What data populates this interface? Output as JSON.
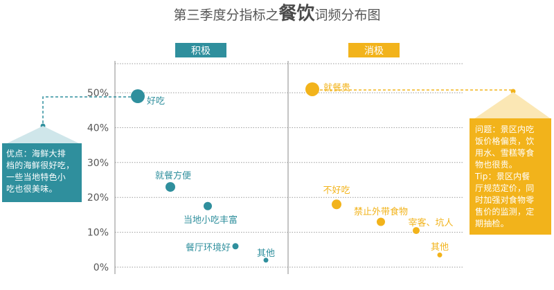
{
  "chart_data": {
    "type": "scatter",
    "title": {
      "prefix": "第三季度分指标之",
      "highlight": "餐饮",
      "suffix": "词频分布图"
    },
    "ylim": [
      0,
      55
    ],
    "yticks": [
      {
        "value": 0,
        "label": "0%"
      },
      {
        "value": 10,
        "label": "10%"
      },
      {
        "value": 20,
        "label": "20%"
      },
      {
        "value": 30,
        "label": "30%"
      },
      {
        "value": 40,
        "label": "40%"
      },
      {
        "value": 50,
        "label": "50%"
      }
    ],
    "grid": true,
    "panels": [
      {
        "name": "积极",
        "color": "#2f8f9d",
        "points": [
          {
            "label": "好吃",
            "value": 49
          },
          {
            "label": "就餐方便",
            "value": 23
          },
          {
            "label": "当地小吃丰富",
            "value": 17.5
          },
          {
            "label": "餐厅环境好",
            "value": 6
          },
          {
            "label": "其他",
            "value": 2
          }
        ]
      },
      {
        "name": "消极",
        "color": "#f2b31b",
        "points": [
          {
            "label": "就餐贵",
            "value": 51
          },
          {
            "label": "不好吃",
            "value": 18
          },
          {
            "label": "禁止外带食物",
            "value": 13
          },
          {
            "label": "宰客、坑人",
            "value": 10.5
          },
          {
            "label": "其他",
            "value": 3.5
          }
        ]
      }
    ]
  },
  "callouts": {
    "positive": {
      "lines": [
        "优点：海鲜大排",
        "档的海鲜很好吃，",
        "一些当地特色小",
        "吃也很美味。"
      ]
    },
    "negative": {
      "lines": [
        "问题：景区内吃",
        "饭价格偏贵，饮",
        "用水、雪糕等食",
        "物也很贵。",
        "Tip：景区内餐",
        "厅规范定价，同",
        "时加强对食物零",
        "售价的监测，定",
        "期抽检。"
      ]
    }
  }
}
